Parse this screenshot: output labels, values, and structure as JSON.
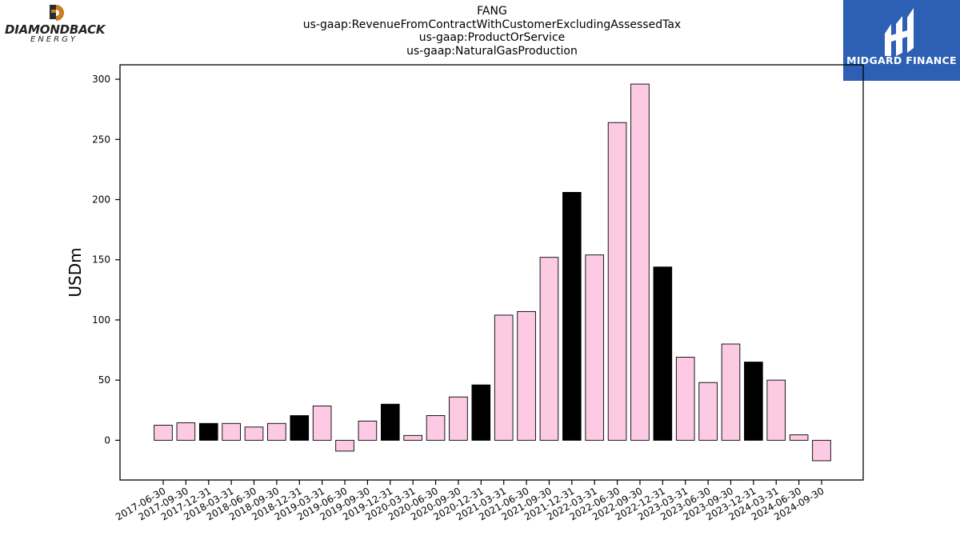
{
  "titles": {
    "line1": "FANG",
    "line2": "us-gaap:RevenueFromContractWithCustomerExcludingAssessedTax",
    "line3": "us-gaap:ProductOrService",
    "line4": "us-gaap:NaturalGasProduction"
  },
  "logos": {
    "left_name": "DIAMONDBACK",
    "left_sub": "ENERGY",
    "right_name": "MIDGARD FINANCE",
    "right_bg": "#2d5fb4"
  },
  "colors": {
    "bar_default": "#fccae3",
    "bar_highlight": "#000000",
    "bar_edge": "#000000"
  },
  "chart_data": {
    "type": "bar",
    "ylabel": "USDm",
    "xlabel": "",
    "ylim": [
      -33,
      312
    ],
    "yticks": [
      0,
      50,
      100,
      150,
      200,
      250,
      300
    ],
    "categories": [
      "2017-06-30",
      "2017-09-30",
      "2017-12-31",
      "2018-03-31",
      "2018-06-30",
      "2018-09-30",
      "2018-12-31",
      "2019-03-31",
      "2019-06-30",
      "2019-09-30",
      "2019-12-31",
      "2020-03-31",
      "2020-06-30",
      "2020-09-30",
      "2020-12-31",
      "2021-03-31",
      "2021-06-30",
      "2021-09-30",
      "2021-12-31",
      "2022-03-31",
      "2022-06-30",
      "2022-09-30",
      "2022-12-31",
      "2023-03-31",
      "2023-06-30",
      "2023-09-30",
      "2023-12-31",
      "2024-03-31",
      "2024-06-30",
      "2024-09-30"
    ],
    "values": [
      12.5,
      14.5,
      14,
      14,
      11,
      14,
      20.5,
      28.5,
      -9,
      16,
      30,
      4,
      20.5,
      36,
      46,
      104,
      107,
      152,
      206,
      154,
      264,
      296,
      144,
      69,
      48,
      80,
      65,
      50,
      4.5,
      -17
    ],
    "highlight": [
      false,
      false,
      true,
      false,
      false,
      false,
      true,
      false,
      false,
      false,
      true,
      false,
      false,
      false,
      true,
      false,
      false,
      false,
      true,
      false,
      false,
      false,
      true,
      false,
      false,
      false,
      true,
      false,
      false,
      false
    ]
  }
}
